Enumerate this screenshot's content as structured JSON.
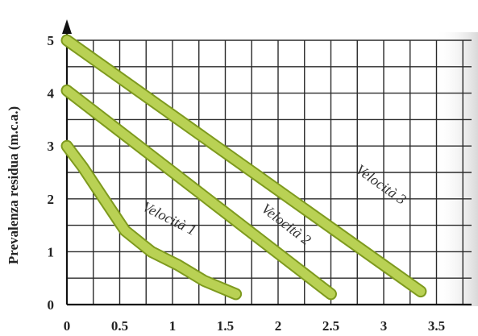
{
  "chart_data": {
    "type": "line",
    "title": "",
    "xlabel": "",
    "ylabel": "Prevalenza residua (m.c.a.)",
    "xlim": [
      0,
      3.75
    ],
    "ylim": [
      0,
      5
    ],
    "x_ticks": [
      "0",
      "0.5",
      "1",
      "1.5",
      "2",
      "2.5",
      "3",
      "3.5"
    ],
    "y_ticks": [
      "0",
      "1",
      "2",
      "3",
      "4",
      "5"
    ],
    "grid": true,
    "colors": {
      "series": "#b9d154",
      "series_outline": "#7e9a1e",
      "grid": "#2a2a2a",
      "axis": "#111111",
      "right_fade": "#e4e4e4"
    },
    "series": [
      {
        "name": "Velocità 1",
        "points": [
          [
            0,
            3.0
          ],
          [
            0.15,
            2.6
          ],
          [
            0.35,
            2.0
          ],
          [
            0.55,
            1.4
          ],
          [
            0.8,
            1.0
          ],
          [
            1.05,
            0.75
          ],
          [
            1.3,
            0.45
          ],
          [
            1.6,
            0.2
          ]
        ]
      },
      {
        "name": "Velocità 2",
        "points": [
          [
            0,
            4.05
          ],
          [
            2.5,
            0.2
          ]
        ]
      },
      {
        "name": "Velocità 3",
        "points": [
          [
            0,
            5.0
          ],
          [
            3.35,
            0.25
          ]
        ]
      }
    ],
    "series_labels": [
      {
        "series": 0,
        "x": 0.95,
        "y": 1.55
      },
      {
        "series": 1,
        "x": 2.05,
        "y": 1.45
      },
      {
        "series": 2,
        "x": 2.95,
        "y": 2.2
      }
    ]
  }
}
